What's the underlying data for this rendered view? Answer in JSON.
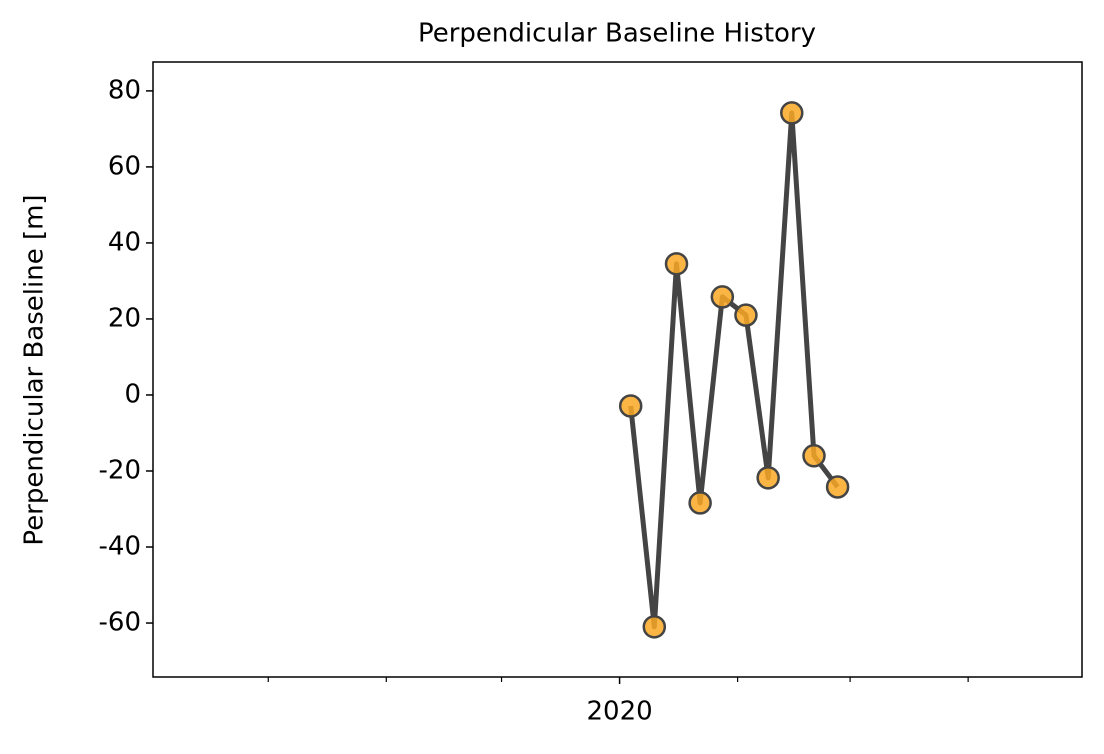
{
  "chart_data": {
    "type": "line",
    "title": "Perpendicular Baseline History",
    "ylabel": "Perpendicular Baseline [m]",
    "x": [
      2020.008,
      2020.025,
      2020.041,
      2020.058,
      2020.074,
      2020.091,
      2020.107,
      2020.124,
      2020.14,
      2020.157
    ],
    "values": [
      -2.9,
      -61,
      34.5,
      -28.4,
      25.8,
      21,
      -21.8,
      74.2,
      -16,
      -24.2
    ],
    "color": "#444444",
    "marker_color": "#f9a825",
    "xlim": [
      2019.664,
      2020.333
    ],
    "xticks": [
      2020
    ],
    "xminor_ticks": [
      2019.747,
      2019.832,
      2019.915,
      2020.085,
      2020.166,
      2020.251
    ],
    "ylim": [
      -74.2,
      87.6
    ],
    "yticks": [
      -60,
      -40,
      -20,
      0,
      20,
      40,
      60,
      80
    ],
    "grid": false
  }
}
